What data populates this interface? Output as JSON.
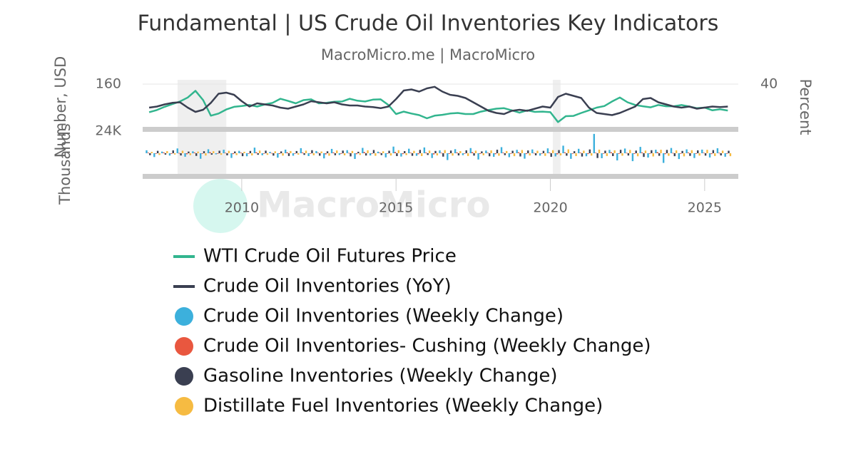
{
  "chart_data": [
    {
      "type": "line",
      "title": "Fundamental | US Crude Oil Inventories Key Indicators",
      "subtitle": "MacroMicro.me | MacroMicro",
      "watermark": "MacroMicro",
      "y_label": "Number, USD",
      "y2_label": "Percent",
      "x": [
        2007,
        2007.25,
        2007.5,
        2007.75,
        2008,
        2008.25,
        2008.5,
        2008.75,
        2009,
        2009.25,
        2009.5,
        2009.75,
        2010,
        2010.25,
        2010.5,
        2010.75,
        2011,
        2011.25,
        2011.5,
        2011.75,
        2012,
        2012.25,
        2012.5,
        2012.75,
        2013,
        2013.25,
        2013.5,
        2013.75,
        2014,
        2014.25,
        2014.5,
        2014.75,
        2015,
        2015.25,
        2015.5,
        2015.75,
        2016,
        2016.25,
        2016.5,
        2016.75,
        2017,
        2017.25,
        2017.5,
        2017.75,
        2018,
        2018.25,
        2018.5,
        2018.75,
        2019,
        2019.25,
        2019.5,
        2019.75,
        2020,
        2020.25,
        2020.5,
        2020.75,
        2021,
        2021.25,
        2021.5,
        2021.75,
        2022,
        2022.25,
        2022.5,
        2022.75,
        2023,
        2023.25,
        2023.5,
        2023.75,
        2024,
        2024.25,
        2024.5,
        2024.75,
        2025,
        2025.25,
        2025.5,
        2025.75
      ],
      "xlim": [
        2006.79,
        2026.09
      ],
      "ylim": [
        0,
        160
      ],
      "yticks": [
        160
      ],
      "y2lim": [
        -40,
        40
      ],
      "y2ticks": [
        40
      ],
      "recessions": [
        [
          2007.92,
          2009.5
        ],
        [
          2020.08,
          2020.33
        ]
      ],
      "series": [
        {
          "name": "WTI Crude Oil Futures Price",
          "color": "#32b58e",
          "values": [
            55,
            63,
            75,
            85,
            95,
            110,
            135,
            100,
            42,
            50,
            65,
            75,
            78,
            82,
            76,
            84,
            90,
            105,
            97,
            88,
            100,
            103,
            88,
            90,
            94,
            95,
            105,
            98,
            95,
            102,
            103,
            82,
            48,
            57,
            50,
            44,
            32,
            42,
            45,
            50,
            52,
            48,
            48,
            57,
            63,
            68,
            70,
            62,
            53,
            62,
            56,
            57,
            55,
            18,
            40,
            41,
            52,
            62,
            72,
            78,
            95,
            110,
            92,
            82,
            77,
            73,
            82,
            77,
            77,
            82,
            76,
            70,
            72,
            62,
            66,
            61
          ]
        },
        {
          "name": "Crude Oil Inventories (YoY)",
          "color": "#3a3f51",
          "axis": "y2",
          "values": [
            -4,
            -2,
            2,
            5,
            6,
            -4,
            -12,
            -8,
            5,
            22,
            24,
            20,
            8,
            -2,
            4,
            2,
            0,
            -4,
            -6,
            -2,
            2,
            8,
            6,
            4,
            6,
            2,
            0,
            0,
            -2,
            -3,
            -5,
            -2,
            12,
            28,
            30,
            26,
            32,
            35,
            26,
            20,
            18,
            14,
            6,
            -2,
            -10,
            -14,
            -16,
            -10,
            -8,
            -10,
            -6,
            -2,
            -4,
            16,
            22,
            18,
            14,
            -4,
            -14,
            -16,
            -18,
            -14,
            -8,
            -2,
            12,
            14,
            6,
            2,
            -2,
            -4,
            -2,
            -6,
            -4,
            -2,
            -3,
            -2
          ]
        }
      ]
    },
    {
      "type": "bar",
      "y_label": "Thousands",
      "x": [
        2007,
        2007.25,
        2007.5,
        2007.75,
        2008,
        2008.25,
        2008.5,
        2008.75,
        2009,
        2009.25,
        2009.5,
        2009.75,
        2010,
        2010.25,
        2010.5,
        2010.75,
        2011,
        2011.25,
        2011.5,
        2011.75,
        2012,
        2012.25,
        2012.5,
        2012.75,
        2013,
        2013.25,
        2013.5,
        2013.75,
        2014,
        2014.25,
        2014.5,
        2014.75,
        2015,
        2015.25,
        2015.5,
        2015.75,
        2016,
        2016.25,
        2016.5,
        2016.75,
        2017,
        2017.25,
        2017.5,
        2017.75,
        2018,
        2018.25,
        2018.5,
        2018.75,
        2019,
        2019.25,
        2019.5,
        2019.75,
        2020,
        2020.25,
        2020.5,
        2020.75,
        2021,
        2021.25,
        2021.5,
        2021.75,
        2022,
        2022.25,
        2022.5,
        2022.75,
        2023,
        2023.25,
        2023.5,
        2023.75,
        2024,
        2024.25,
        2024.5,
        2024.75,
        2025,
        2025.25,
        2025.5,
        2025.75
      ],
      "xlim": [
        2006.79,
        2026.09
      ],
      "xticks": [
        2010,
        2015,
        2020,
        2025
      ],
      "ylim": [
        -24000,
        24000
      ],
      "yticks": [
        {
          "value": 24000,
          "label": "24K"
        }
      ],
      "series": [
        {
          "name": "Crude Oil Inventories (Weekly Change)",
          "color": "#3cb0dc",
          "values": [
            3200,
            -4100,
            1800,
            -2500,
            5200,
            -3800,
            2100,
            -6000,
            4300,
            -1200,
            3800,
            -5100,
            2600,
            -3300,
            6100,
            -2200,
            1500,
            -4800,
            3900,
            -2700,
            5500,
            -3100,
            2400,
            -5600,
            4700,
            -1900,
            3300,
            -6200,
            5800,
            -2400,
            1700,
            -4500,
            7200,
            -3600,
            4900,
            -2800,
            6300,
            -5200,
            3100,
            -7400,
            4400,
            -2100,
            5600,
            -6800,
            2900,
            -3900,
            6600,
            -4300,
            3700,
            -5900,
            4100,
            -2600,
            5300,
            -3400,
            8200,
            -6100,
            4800,
            -3300,
            21000,
            -5400,
            3600,
            -7800,
            5100,
            -8600,
            6900,
            -4700,
            3800,
            -10500,
            5700,
            -6300,
            4200,
            -5200,
            3900,
            -4600,
            5400,
            -3800
          ]
        },
        {
          "name": "Crude Oil Inventories- Cushing (Weekly Change)",
          "color": "#e9573f",
          "values": [
            600,
            -400,
            900,
            -700,
            300,
            -1100,
            800,
            -500,
            1200,
            -300,
            500,
            -900,
            700,
            -600,
            1100,
            -400,
            300,
            -800,
            1000,
            -500,
            800,
            -300,
            600,
            -1200,
            900,
            -700,
            400,
            -1000,
            1300,
            -600,
            700,
            -500,
            1400,
            -900,
            600,
            -1100,
            800,
            -1300,
            500,
            -700,
            900,
            -400,
            1200,
            -800,
            600,
            -1000,
            700,
            -500,
            1100,
            -900,
            400,
            -600,
            800,
            -1200,
            1000,
            -500,
            700,
            -900,
            600,
            -400,
            1100,
            -700,
            500,
            -800,
            900,
            -600,
            1200,
            -1000,
            400,
            -500,
            800,
            -700,
            600,
            -900,
            500,
            -400
          ]
        },
        {
          "name": "Gasoline Inventories (Weekly Change)",
          "color": "#3a3f51",
          "values": [
            -2100,
            2600,
            -1500,
            3100,
            -2400,
            1800,
            -2900,
            2200,
            -1600,
            2700,
            -2300,
            1900,
            -3200,
            2500,
            -1700,
            2800,
            -2600,
            2000,
            -3000,
            2400,
            -1800,
            3300,
            -2700,
            2100,
            -2200,
            2900,
            -3400,
            1600,
            -2500,
            3500,
            -2000,
            2700,
            -3100,
            2300,
            -2800,
            3600,
            -1900,
            2500,
            -3700,
            2900,
            -2400,
            3200,
            -2600,
            2000,
            -3300,
            3800,
            -2100,
            2700,
            -3500,
            3000,
            -2300,
            2600,
            -3900,
            3400,
            -2700,
            2200,
            -3600,
            4100,
            -5200,
            2800,
            -3100,
            3700,
            -2500,
            2900,
            -4000,
            3300,
            -2800,
            3600,
            -3200,
            2500,
            -2900,
            3100,
            -2600,
            3400,
            -2400,
            2700
          ]
        },
        {
          "name": "Distillate Fuel Inventories (Weekly Change)",
          "color": "#f6bb42",
          "values": [
            1500,
            -1900,
            2300,
            -1400,
            2700,
            -2100,
            1800,
            -2500,
            2200,
            -1700,
            2600,
            -2000,
            1600,
            -2400,
            2900,
            -1800,
            2100,
            -2600,
            2400,
            -1500,
            2800,
            -2200,
            1900,
            -2700,
            3000,
            -2300,
            2500,
            -1900,
            3200,
            -2800,
            2100,
            -2500,
            3300,
            -2000,
            2600,
            -3100,
            2900,
            -2400,
            3400,
            -2600,
            2300,
            -3000,
            2800,
            -2200,
            3100,
            -2700,
            2400,
            -3200,
            3500,
            -2500,
            2700,
            -2900,
            3300,
            -2400,
            4200,
            -3100,
            2800,
            -2600,
            3900,
            -3000,
            3200,
            -2700,
            3600,
            -3300,
            2900,
            -3500,
            3800,
            -2800,
            3100,
            -3400,
            3300,
            -2600,
            3700,
            -3000,
            2800,
            -3200
          ]
        }
      ]
    }
  ]
}
